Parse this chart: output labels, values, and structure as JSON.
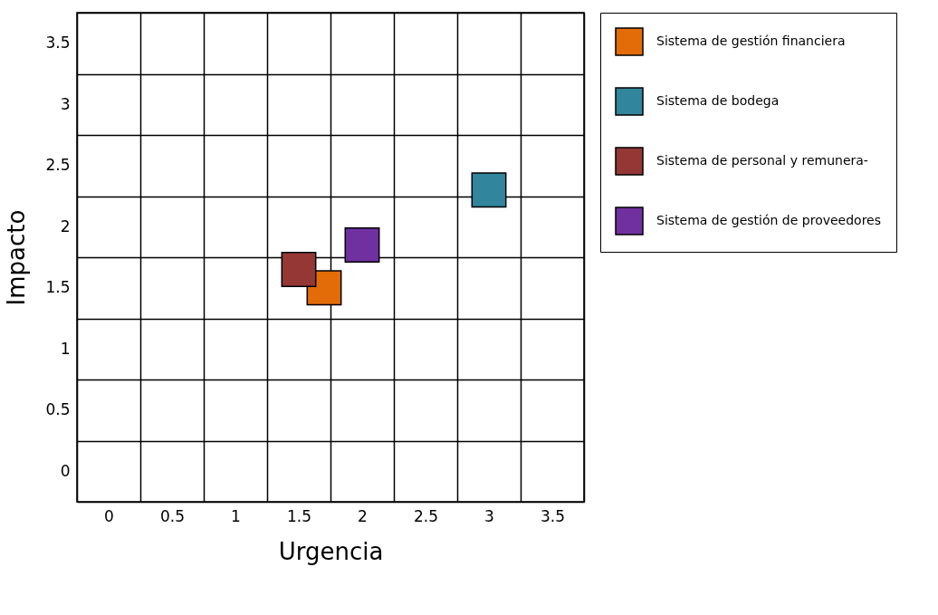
{
  "chart_data": {
    "type": "scatter",
    "xlabel": "Urgencia",
    "ylabel": "Impacto",
    "marker": "square",
    "grid": true,
    "legend": "right",
    "xlim": [
      -0.25,
      3.75
    ],
    "ylim": [
      -0.25,
      3.75
    ],
    "xticks": [
      {
        "value": -0.25,
        "label": null
      },
      0,
      {
        "value": 0.25,
        "label": null
      },
      0.5,
      {
        "value": 0.75,
        "label": null
      },
      1,
      {
        "value": 1.25,
        "label": null
      },
      1.5,
      {
        "value": 1.75,
        "label": null
      },
      2,
      {
        "value": 2.25,
        "label": null
      },
      2.5,
      {
        "value": 2.75,
        "label": null
      },
      3,
      {
        "value": 3.25,
        "label": null
      },
      3.5,
      {
        "value": 3.75,
        "label": null
      }
    ],
    "yticks": [
      {
        "value": -0.25,
        "label": null
      },
      0,
      {
        "value": 0.25,
        "label": null
      },
      0.5,
      {
        "value": 0.75,
        "label": null
      },
      1,
      {
        "value": 1.25,
        "label": null
      },
      1.5,
      {
        "value": 1.75,
        "label": null
      },
      2,
      {
        "value": 2.25,
        "label": null
      },
      2.5,
      {
        "value": 2.75,
        "label": null
      },
      3,
      {
        "value": 3.25,
        "label": null
      },
      3.5,
      {
        "value": 3.75,
        "label": null
      }
    ],
    "series": [
      {
        "name": "Sistema de gestión financiera",
        "color": "#e36c09",
        "x": [
          1.7
        ],
        "values": [
          1.5
        ]
      },
      {
        "name": "Sistema de bodega",
        "color": "#31859c",
        "x": [
          3.0
        ],
        "values": [
          2.3
        ]
      },
      {
        "name": "Sistema de personal y remunera-",
        "color": "#953735",
        "x": [
          1.5
        ],
        "values": [
          1.65
        ]
      },
      {
        "name": "Sistema de gestión de proveedores",
        "color": "#7030a0",
        "x": [
          2.0
        ],
        "values": [
          1.85
        ]
      }
    ]
  }
}
